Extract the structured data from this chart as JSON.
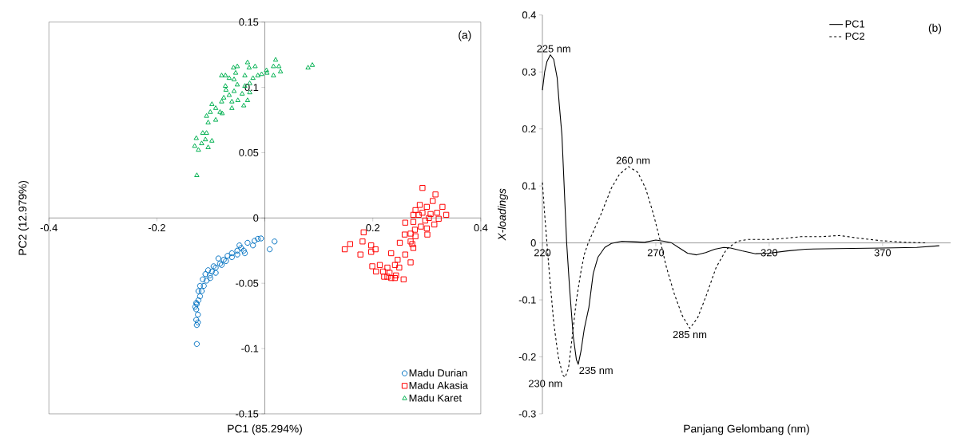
{
  "chart_data": [
    {
      "type": "scatter",
      "xlabel": "PC1 (85.294%)",
      "ylabel": "PC2 (12.979%)",
      "annotations": [
        "(a)"
      ],
      "xlim": [
        -0.4,
        0.4
      ],
      "ylim": [
        -0.15,
        0.15
      ],
      "xticks": [
        -0.4,
        -0.2,
        {
          "value": 0,
          "label": null
        },
        0.2,
        0.4
      ],
      "yticks": [
        -0.15,
        -0.1,
        -0.05,
        0,
        0.05,
        0.1,
        0.15
      ],
      "legend": "bottom right",
      "series": [
        {
          "name": "Madu Durian",
          "color": "#0070c0",
          "marker": "circle",
          "x": [
            -0.126,
            -0.126,
            -0.127,
            -0.124,
            -0.127,
            -0.126,
            -0.123,
            -0.12,
            -0.117,
            -0.113,
            -0.108,
            -0.102,
            -0.098,
            -0.091,
            -0.083,
            -0.076,
            -0.069,
            -0.061,
            -0.051,
            -0.044,
            -0.047,
            -0.037,
            -0.032,
            -0.022,
            -0.019,
            -0.013,
            -0.007,
            0.009,
            0.018,
            -0.086,
            -0.095,
            -0.105,
            -0.115,
            -0.12,
            -0.11,
            -0.101,
            -0.123,
            -0.127,
            -0.129,
            -0.061,
            -0.072,
            -0.051,
            -0.039,
            -0.124,
            -0.08,
            -0.091
          ],
          "values": [
            -0.0965,
            -0.082,
            -0.078,
            -0.074,
            -0.07,
            -0.066,
            -0.063,
            -0.06,
            -0.056,
            -0.052,
            -0.048,
            -0.044,
            -0.041,
            -0.038,
            -0.035,
            -0.032,
            -0.029,
            -0.027,
            -0.025,
            -0.023,
            -0.021,
            -0.027,
            -0.019,
            -0.021,
            -0.0175,
            -0.016,
            -0.0157,
            -0.024,
            -0.018,
            -0.031,
            -0.037,
            -0.04,
            -0.047,
            -0.052,
            -0.043,
            -0.046,
            -0.056,
            -0.065,
            -0.068,
            -0.03,
            -0.033,
            -0.028,
            -0.025,
            -0.08,
            -0.036,
            -0.042
          ]
        },
        {
          "name": "Madu Akasia",
          "color": "#ff0000",
          "marker": "square",
          "x": [
            0.292,
            0.316,
            0.311,
            0.329,
            0.287,
            0.3,
            0.336,
            0.279,
            0.285,
            0.307,
            0.322,
            0.314,
            0.297,
            0.275,
            0.26,
            0.289,
            0.278,
            0.301,
            0.279,
            0.273,
            0.275,
            0.259,
            0.25,
            0.183,
            0.181,
            0.158,
            0.148,
            0.177,
            0.197,
            0.205,
            0.197,
            0.234,
            0.26,
            0.27,
            0.246,
            0.199,
            0.213,
            0.227,
            0.241,
            0.249,
            0.219,
            0.231,
            0.221,
            0.234,
            0.243,
            0.257,
            0.206,
            0.227,
            0.241,
            0.292,
            0.304,
            0.27,
            0.27,
            0.3,
            0.275,
            0.319
          ],
          "values": [
            0.023,
            0.018,
            0.013,
            0.0085,
            0.01,
            0.0085,
            0.0024,
            0.006,
            0.0024,
            0.003,
            -0.0006,
            -0.005,
            -0.002,
            -0.003,
            -0.0036,
            -0.0066,
            -0.009,
            -0.0127,
            -0.014,
            -0.02,
            -0.023,
            -0.0127,
            -0.019,
            -0.011,
            -0.018,
            -0.02,
            -0.024,
            -0.028,
            -0.021,
            -0.024,
            -0.026,
            -0.027,
            -0.028,
            -0.034,
            -0.032,
            -0.037,
            -0.036,
            -0.038,
            -0.036,
            -0.038,
            -0.041,
            -0.042,
            -0.045,
            -0.046,
            -0.044,
            -0.047,
            -0.041,
            -0.045,
            -0.046,
            0.004,
            0.0,
            -0.012,
            -0.018,
            -0.008,
            0.0024,
            0.004
          ]
        },
        {
          "name": "Madu Karet",
          "color": "#00b050",
          "marker": "triangle",
          "x": [
            -0.126,
            -0.032,
            -0.058,
            -0.051,
            -0.018,
            0.02,
            0.026,
            0.016,
            0.029,
            0.003,
            0.004,
            0.016,
            -0.006,
            0.08,
            0.088,
            -0.08,
            -0.073,
            -0.054,
            -0.029,
            -0.013,
            -0.022,
            -0.037,
            -0.057,
            -0.073,
            -0.037,
            -0.028,
            -0.042,
            -0.057,
            -0.066,
            -0.076,
            -0.05,
            -0.039,
            -0.061,
            -0.08,
            -0.091,
            -0.098,
            -0.083,
            -0.101,
            -0.108,
            -0.079,
            -0.091,
            -0.105,
            -0.108,
            -0.11,
            -0.098,
            -0.127,
            -0.13,
            -0.123,
            -0.105,
            -0.117,
            -0.115,
            -0.072,
            -0.051,
            -0.061,
            -0.032,
            -0.028,
            -0.066
          ],
          "values": [
            0.0326,
            0.119,
            0.115,
            0.116,
            0.116,
            0.121,
            0.116,
            0.116,
            0.112,
            0.113,
            0.111,
            0.109,
            0.11,
            0.115,
            0.117,
            0.109,
            0.109,
            0.111,
            0.115,
            0.109,
            0.107,
            0.109,
            0.106,
            0.101,
            0.101,
            0.096,
            0.095,
            0.097,
            0.094,
            0.092,
            0.09,
            0.086,
            0.084,
            0.089,
            0.084,
            0.087,
            0.081,
            0.081,
            0.078,
            0.08,
            0.075,
            0.073,
            0.065,
            0.06,
            0.059,
            0.061,
            0.055,
            0.052,
            0.054,
            0.057,
            0.065,
            0.098,
            0.102,
            0.089,
            0.09,
            0.103,
            0.107
          ]
        }
      ]
    },
    {
      "type": "line",
      "xlabel": "Panjang Gelombang (nm)",
      "ylabel": "X-loadings",
      "annotations": [
        "(b)",
        {
          "text": "225 nm",
          "x": 225,
          "y": 0.33
        },
        {
          "text": "260 nm",
          "x": 260,
          "y": 0.134
        },
        {
          "text": "230 nm",
          "x": 230,
          "y": -0.236
        },
        {
          "text": "235 nm",
          "x": 235,
          "y": -0.213
        },
        {
          "text": "285 nm",
          "x": 285,
          "y": -0.15
        }
      ],
      "xlim": [
        220,
        400
      ],
      "ylim": [
        -0.3,
        0.4
      ],
      "xticks": [
        220,
        270,
        320,
        370
      ],
      "yticks": [
        -0.3,
        -0.2,
        -0.1,
        0,
        0.1,
        0.2,
        0.3,
        0.4
      ],
      "legend": "top right",
      "series": [
        {
          "name": "PC1",
          "color": "#000000",
          "line_style": "solid",
          "x": [
            220,
            221,
            222,
            223.5,
            225,
            226.5,
            227.5,
            228.6,
            229.7,
            230.7,
            232,
            233.6,
            235,
            235.8,
            237,
            238.5,
            240.5,
            242.4,
            244.5,
            247.5,
            250.4,
            255,
            260,
            265,
            270,
            273.6,
            277,
            280,
            284,
            288,
            292,
            296,
            300,
            303,
            308,
            314,
            320,
            328,
            336,
            350,
            370,
            385,
            395
          ],
          "values": [
            0.268,
            0.3,
            0.318,
            0.33,
            0.322,
            0.29,
            0.24,
            0.19,
            0.09,
            0,
            -0.08,
            -0.164,
            -0.205,
            -0.213,
            -0.19,
            -0.15,
            -0.113,
            -0.054,
            -0.025,
            -0.008,
            -0.001,
            0.003,
            0.002,
            0.001,
            0.005,
            0.003,
            0,
            -0.008,
            -0.018,
            -0.021,
            -0.017,
            -0.011,
            -0.008,
            -0.009,
            -0.014,
            -0.019,
            -0.018,
            -0.014,
            -0.011,
            -0.01,
            -0.009,
            -0.008,
            -0.005
          ]
        },
        {
          "name": "PC2",
          "color": "#000000",
          "line_style": "dashed",
          "x": [
            220,
            221,
            222,
            223,
            225,
            227,
            229,
            230,
            231.5,
            233,
            235,
            237,
            238.5,
            240.2,
            245.8,
            250.4,
            253.9,
            258,
            262,
            265.5,
            269,
            272,
            274.7,
            278.2,
            281.6,
            285,
            288.5,
            292,
            296.6,
            301.2,
            306,
            310.7,
            320,
            327,
            334,
            343,
            351,
            360,
            369,
            380,
            389
          ],
          "values": [
            0.106,
            0.05,
            0,
            -0.05,
            -0.14,
            -0.2,
            -0.232,
            -0.236,
            -0.22,
            -0.17,
            -0.1,
            -0.05,
            -0.02,
            0,
            0.05,
            0.096,
            0.12,
            0.134,
            0.124,
            0.096,
            0.05,
            0.003,
            -0.043,
            -0.09,
            -0.127,
            -0.15,
            -0.131,
            -0.095,
            -0.043,
            -0.011,
            0.003,
            0.006,
            0.006,
            0.008,
            0.011,
            0.011,
            0.013,
            0.008,
            0.004,
            0.001,
            0
          ]
        }
      ]
    }
  ]
}
